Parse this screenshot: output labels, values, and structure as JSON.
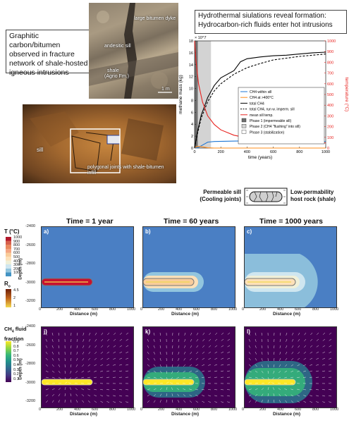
{
  "topleft_caption": "Graphitic carbon/bitumen observed in fracture network of shale-hosted igneous intrusions",
  "photo1_labels": {
    "dyke": "large bitumen dyke",
    "sill": "andesitic sill",
    "shale": "shale",
    "formation": "(Agrio Fm.)",
    "scale": "1 m"
  },
  "photo2_labels": {
    "sill": "sill",
    "joints": "polygonal joints with shale-bitumen infill"
  },
  "topright_title_line1": "Hydrothermal siulations reveal formation:",
  "topright_title_line2": "Hydrocarbon-rich fluids enter hot intrusions",
  "schematic": {
    "left_line1": "Permeable sill",
    "left_line2": "(Cooling joints)",
    "right_line1": "Low-permability",
    "right_line2": "host rock (shale)"
  },
  "columns": [
    "Time = 1 year",
    "Time = 60 years",
    "Time = 1000 years"
  ],
  "panel_letters": [
    "a)",
    "b)",
    "c)",
    "j)",
    "k)",
    "l)"
  ],
  "depth_label": "Depth (m)",
  "distance_label": "Distance (m)",
  "y_ticks": [
    "-2400",
    "-2600",
    "-2800",
    "-3000",
    "-3200"
  ],
  "x_ticks": [
    "0",
    "200",
    "400",
    "600",
    "800",
    "1000"
  ],
  "temp_colorbar": {
    "title": "T (°C)",
    "labels": [
      "1000",
      "900",
      "800",
      "700",
      "600",
      "500",
      "400",
      "300",
      "200",
      "100"
    ],
    "colors": [
      "#b2182b",
      "#d6604d",
      "#e98a5f",
      "#f4a582",
      "#f9cc9a",
      "#fde0b8",
      "#f0f0d8",
      "#cfe6f0",
      "#92c5de",
      "#4393c3"
    ]
  },
  "ro_colorbar": {
    "title": "R",
    "sub": "o",
    "labels": [
      "4.5",
      "2",
      "1"
    ]
  },
  "ch4_colorbar": {
    "title_line1": "CH",
    "title_sub": "4",
    "title_line1b": " fluid",
    "title_line2": "fraction",
    "labels": [
      "0.9",
      "0.8",
      "0.7",
      "0.6",
      "0.5",
      "0.4",
      "0.3",
      "0.2",
      "0.1"
    ]
  },
  "chart_data": {
    "type": "line",
    "title": "",
    "xlabel": "time (years)",
    "ylabel": "methane mass (kg)",
    "ylabel_right": "temperature (°C)",
    "y_multiplier": "× 10^7",
    "xlim": [
      0,
      1000
    ],
    "ylim": [
      0,
      18
    ],
    "ylim_right": [
      0,
      1000
    ],
    "x_ticks": [
      0,
      200,
      400,
      600,
      800,
      1000
    ],
    "y_ticks": [
      0,
      2,
      4,
      6,
      8,
      10,
      12,
      14,
      16,
      18
    ],
    "y_ticks_right": [
      0,
      100,
      200,
      300,
      400,
      500,
      600,
      700,
      800,
      900,
      1000
    ],
    "phases": [
      {
        "name": "Phase 1 (impermeable sill)",
        "x": [
          0,
          25
        ]
      },
      {
        "name": "Phase 2 (CH4 \"flushing\" into sill)",
        "x": [
          25,
          125
        ]
      },
      {
        "name": "Phase 3 (stabilization)",
        "x": [
          125,
          1000
        ]
      }
    ],
    "series": [
      {
        "name": "CH4 within sill",
        "color": "#1f77d4",
        "style": "solid",
        "x": [
          0,
          25,
          60,
          100,
          150,
          250,
          350,
          400,
          500,
          600,
          800,
          1000
        ],
        "y": [
          0,
          0.05,
          0.5,
          1.0,
          1.1,
          1.15,
          1.2,
          1.4,
          1.2,
          1.15,
          1.1,
          1.1
        ]
      },
      {
        "name": "CH4 at >400°C",
        "color": "#ff8c1a",
        "style": "solid",
        "x": [
          0,
          10,
          30,
          60,
          100,
          150,
          200,
          400,
          1000
        ],
        "y": [
          0,
          0.2,
          0.3,
          0.2,
          0.05,
          0,
          0,
          0,
          0
        ]
      },
      {
        "name": "total CH4",
        "color": "#000000",
        "style": "solid",
        "x": [
          0,
          20,
          50,
          100,
          150,
          200,
          300,
          350,
          400,
          500,
          600,
          700,
          800,
          900,
          1000
        ],
        "y": [
          0,
          2.5,
          5.5,
          8.5,
          10.5,
          11.8,
          13.0,
          14.5,
          15.0,
          15.3,
          15.5,
          15.6,
          15.8,
          16.0,
          16.1
        ]
      },
      {
        "name": "total CH4, run w. imperm. sill",
        "color": "#000000",
        "style": "dashed",
        "x": [
          0,
          20,
          50,
          100,
          150,
          200,
          300,
          400,
          500,
          600,
          700,
          800,
          900,
          1000
        ],
        "y": [
          0,
          2.2,
          5.0,
          7.8,
          9.6,
          10.8,
          12.4,
          13.5,
          14.2,
          14.8,
          15.1,
          15.4,
          15.6,
          15.8
        ]
      },
      {
        "name": "mean sill temp.",
        "color": "#e8231f",
        "style": "solid",
        "axis": "right",
        "x": [
          0,
          10,
          30,
          60,
          100,
          150,
          200,
          300,
          400,
          600,
          800,
          1000
        ],
        "y": [
          1000,
          820,
          600,
          430,
          300,
          220,
          170,
          120,
          95,
          70,
          55,
          48
        ]
      }
    ]
  }
}
